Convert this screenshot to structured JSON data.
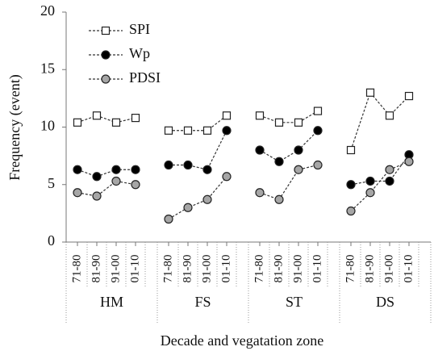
{
  "chart_data": {
    "type": "line",
    "y_label": "Frequency (event)",
    "x_label": "Decade and vegatation zone",
    "groups": [
      "HM",
      "FS",
      "ST",
      "DS"
    ],
    "categories": [
      "71-80",
      "81-90",
      "91-00",
      "01-10",
      "71-80",
      "81-90",
      "91-00",
      "01-10",
      "71-80",
      "81-90",
      "91-00",
      "01-10",
      "71-80",
      "81-90",
      "91-00",
      "01-10"
    ],
    "series": [
      {
        "name": "SPI",
        "color": "#ffffff",
        "marker": "square",
        "values": [
          10.4,
          11.0,
          10.4,
          10.8,
          9.7,
          9.7,
          9.7,
          11.0,
          11.0,
          10.4,
          10.4,
          11.4,
          8.0,
          13.0,
          11.0,
          12.7
        ]
      },
      {
        "name": "Wp",
        "color": "#000000",
        "marker": "circle",
        "values": [
          6.3,
          5.7,
          6.3,
          6.3,
          6.7,
          6.7,
          6.3,
          9.7,
          8.0,
          7.0,
          8.0,
          9.7,
          5.0,
          5.3,
          5.3,
          7.6
        ]
      },
      {
        "name": "PDSI",
        "color": "#a6a6a6",
        "marker": "circle",
        "values": [
          4.3,
          4.0,
          5.3,
          5.0,
          2.0,
          3.0,
          3.7,
          5.7,
          4.3,
          3.7,
          6.3,
          6.7,
          2.7,
          4.3,
          6.3,
          7.0
        ]
      }
    ],
    "ylim": [
      0,
      20
    ],
    "yticks": [
      0,
      5,
      10,
      15,
      20
    ],
    "legend": "top-left"
  }
}
